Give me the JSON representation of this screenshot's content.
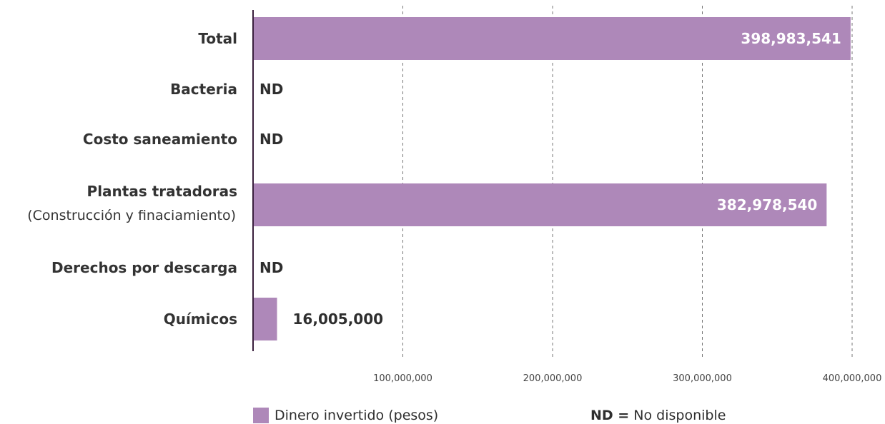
{
  "colors": {
    "bar": "#ae88b9",
    "axis": "#3a1f3d",
    "grid": "#777777"
  },
  "chart_data": {
    "type": "bar",
    "orientation": "horizontal",
    "categories": [
      "Total",
      "Bacteria",
      "Costo saneamiento",
      "Plantas tratadoras",
      "Derechos por descarga",
      "Químicos"
    ],
    "category_sublabels": [
      "",
      "",
      "",
      "(Construcción y finaciamiento)",
      "",
      ""
    ],
    "values": [
      398983541,
      null,
      null,
      382978540,
      null,
      16005000
    ],
    "value_labels": [
      "398,983,541",
      "ND",
      "ND",
      "382,978,540",
      "ND",
      "16,005,000"
    ],
    "xlim": [
      0,
      400000000
    ],
    "x_ticks": [
      100000000,
      200000000,
      300000000,
      400000000
    ],
    "x_tick_labels": [
      "100,000,000",
      "200,000,000",
      "300,000,000",
      "400,000,000"
    ],
    "grid": "vertical dashed",
    "legend_position": "bottom"
  },
  "legend": {
    "series_label": "Dinero invertido (pesos)",
    "nd_key": "ND =",
    "nd_meaning": "No disponible"
  }
}
